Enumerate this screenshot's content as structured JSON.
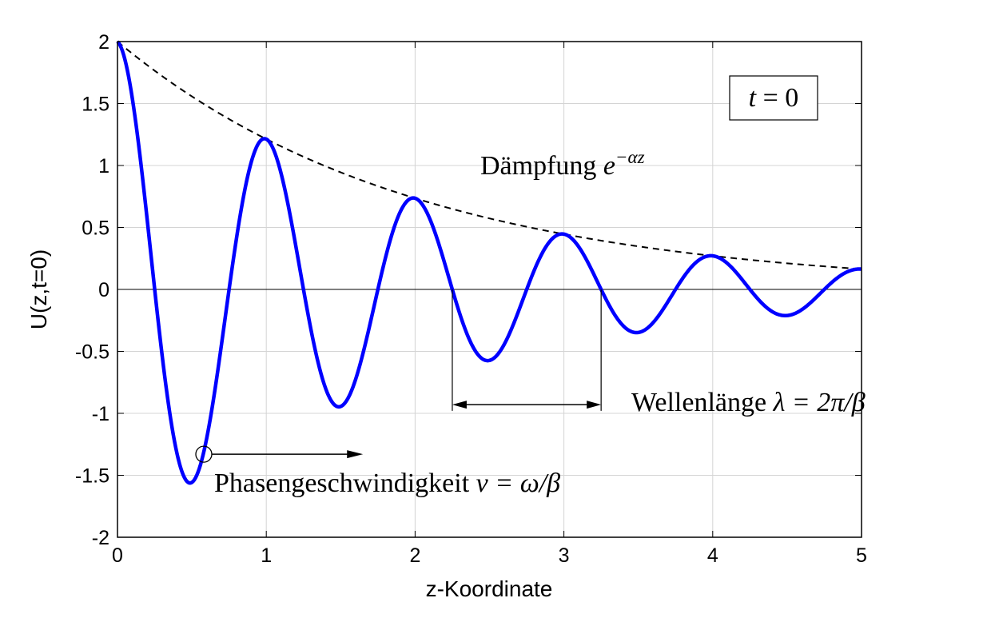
{
  "chart_data": {
    "type": "line",
    "xlabel": "z-Koordinate",
    "ylabel": "U(z,t=0)",
    "xlim": [
      0,
      5
    ],
    "ylim": [
      -2,
      2
    ],
    "xticks": [
      "0",
      "1",
      "2",
      "3",
      "4",
      "5"
    ],
    "yticks": [
      "2",
      "1.5",
      "1",
      "0.5",
      "0",
      "-0.5",
      "-1",
      "-1.5",
      "-2"
    ],
    "grid": true,
    "series": [
      {
        "role": "signal",
        "color": "#0000ff",
        "style": "solid",
        "function": "2*exp(-0.5*z)*cos(2*pi*z)",
        "amplitude": 2,
        "alpha": 0.5,
        "beta": 6.2832
      },
      {
        "role": "envelope",
        "color": "#000000",
        "style": "dashed",
        "function": "2*exp(-0.5*z)"
      }
    ],
    "annotations": {
      "time_box": {
        "lhs": "t",
        "rhs": "= 0"
      },
      "damping": {
        "text": "Dämpfung",
        "math_base": "e",
        "math_exp": "−αz"
      },
      "wavelength": {
        "text": "Wellenlänge",
        "math": "λ = 2π/β",
        "from_z": 2.25,
        "to_z": 3.25
      },
      "phase_velocity": {
        "text": "Phasengeschwindigkeit",
        "math": "v = ω/β",
        "marker_z": 0.58,
        "marker_u": -1.33
      }
    }
  }
}
